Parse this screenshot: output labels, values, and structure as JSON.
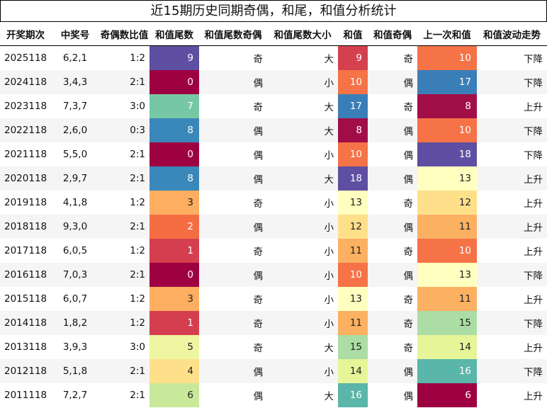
{
  "title": "近15期历史同期奇偶，和尾，和值分析统计",
  "headers": [
    "开奖期次",
    "中奖号",
    "奇偶数比值",
    "和值尾数",
    "和值尾数奇偶",
    "和值尾数大小",
    "和值",
    "和值奇偶",
    "上一次和值",
    "和值波动走势"
  ],
  "rows": [
    {
      "issue": "2025118",
      "draw": "6,2,1",
      "ratio": "1:2",
      "tail": "9",
      "tail_parity": "奇",
      "tail_size": "大",
      "sum": "9",
      "sum_parity": "奇",
      "prev_sum": "10",
      "trend": "下降"
    },
    {
      "issue": "2024118",
      "draw": "3,4,3",
      "ratio": "2:1",
      "tail": "0",
      "tail_parity": "偶",
      "tail_size": "小",
      "sum": "10",
      "sum_parity": "偶",
      "prev_sum": "17",
      "trend": "下降"
    },
    {
      "issue": "2023118",
      "draw": "7,3,7",
      "ratio": "3:0",
      "tail": "7",
      "tail_parity": "奇",
      "tail_size": "大",
      "sum": "17",
      "sum_parity": "奇",
      "prev_sum": "8",
      "trend": "上升"
    },
    {
      "issue": "2022118",
      "draw": "2,6,0",
      "ratio": "0:3",
      "tail": "8",
      "tail_parity": "偶",
      "tail_size": "大",
      "sum": "8",
      "sum_parity": "偶",
      "prev_sum": "10",
      "trend": "下降"
    },
    {
      "issue": "2021118",
      "draw": "5,5,0",
      "ratio": "2:1",
      "tail": "0",
      "tail_parity": "偶",
      "tail_size": "小",
      "sum": "10",
      "sum_parity": "偶",
      "prev_sum": "18",
      "trend": "下降"
    },
    {
      "issue": "2020118",
      "draw": "2,9,7",
      "ratio": "2:1",
      "tail": "8",
      "tail_parity": "偶",
      "tail_size": "大",
      "sum": "18",
      "sum_parity": "偶",
      "prev_sum": "13",
      "trend": "上升"
    },
    {
      "issue": "2019118",
      "draw": "4,1,8",
      "ratio": "1:2",
      "tail": "3",
      "tail_parity": "奇",
      "tail_size": "小",
      "sum": "13",
      "sum_parity": "奇",
      "prev_sum": "12",
      "trend": "上升"
    },
    {
      "issue": "2018118",
      "draw": "9,3,0",
      "ratio": "2:1",
      "tail": "2",
      "tail_parity": "偶",
      "tail_size": "小",
      "sum": "12",
      "sum_parity": "偶",
      "prev_sum": "11",
      "trend": "上升"
    },
    {
      "issue": "2017118",
      "draw": "6,0,5",
      "ratio": "1:2",
      "tail": "1",
      "tail_parity": "奇",
      "tail_size": "小",
      "sum": "11",
      "sum_parity": "奇",
      "prev_sum": "10",
      "trend": "上升"
    },
    {
      "issue": "2016118",
      "draw": "7,0,3",
      "ratio": "2:1",
      "tail": "0",
      "tail_parity": "偶",
      "tail_size": "小",
      "sum": "10",
      "sum_parity": "偶",
      "prev_sum": "13",
      "trend": "下降"
    },
    {
      "issue": "2015118",
      "draw": "6,0,7",
      "ratio": "1:2",
      "tail": "3",
      "tail_parity": "奇",
      "tail_size": "小",
      "sum": "13",
      "sum_parity": "奇",
      "prev_sum": "11",
      "trend": "上升"
    },
    {
      "issue": "2014118",
      "draw": "1,8,2",
      "ratio": "1:2",
      "tail": "1",
      "tail_parity": "奇",
      "tail_size": "小",
      "sum": "11",
      "sum_parity": "奇",
      "prev_sum": "15",
      "trend": "下降"
    },
    {
      "issue": "2013118",
      "draw": "3,9,3",
      "ratio": "3:0",
      "tail": "5",
      "tail_parity": "奇",
      "tail_size": "大",
      "sum": "15",
      "sum_parity": "奇",
      "prev_sum": "14",
      "trend": "上升"
    },
    {
      "issue": "2012118",
      "draw": "5,1,8",
      "ratio": "2:1",
      "tail": "4",
      "tail_parity": "偶",
      "tail_size": "小",
      "sum": "14",
      "sum_parity": "偶",
      "prev_sum": "16",
      "trend": "下降"
    },
    {
      "issue": "2011118",
      "draw": "7,2,7",
      "ratio": "2:1",
      "tail": "6",
      "tail_parity": "偶",
      "tail_size": "大",
      "sum": "16",
      "sum_parity": "偶",
      "prev_sum": "6",
      "trend": "上升"
    }
  ],
  "colors": {
    "tail": {
      "0": "#9e0142",
      "1": "#d53e4f",
      "2": "#f46d43",
      "3": "#fdae61",
      "4": "#fee08b",
      "5": "#eef5a0",
      "6": "#c9e99a",
      "7": "#76c8a4",
      "8": "#3a87ba",
      "9": "#5e4fa2"
    },
    "sum": {
      "6": "#9e0142",
      "8": "#a10d47",
      "9": "#d5404f",
      "10": "#f57346",
      "11": "#fcb062",
      "12": "#fee08b",
      "13": "#ffffbf",
      "14": "#e6f598",
      "15": "#abdda4",
      "16": "#5ab6a9",
      "17": "#3a7eb8",
      "18": "#5e4fa2"
    },
    "light_text": "#ffffff",
    "dark_text": "#222222"
  }
}
